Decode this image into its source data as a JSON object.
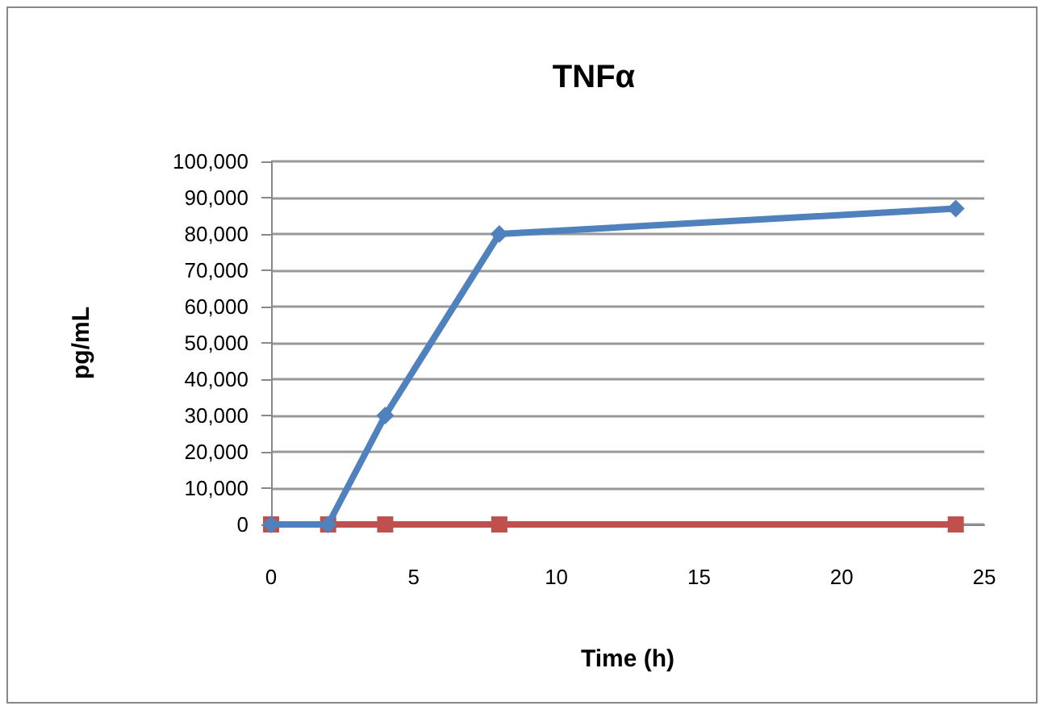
{
  "chart_data": {
    "type": "line",
    "title": "TNFα",
    "xlabel": "Time (h)",
    "ylabel": "pg/mL",
    "x": [
      0,
      2,
      4,
      8,
      24
    ],
    "series": [
      {
        "color": "#4f81bd",
        "values": [
          0,
          0,
          30000,
          80000,
          87000
        ],
        "marker": "diamond"
      },
      {
        "color": "#c0504d",
        "values": [
          0,
          0,
          0,
          0,
          0
        ],
        "marker": "square"
      }
    ],
    "xlim": [
      0,
      25
    ],
    "xticks": [
      0,
      5,
      10,
      15,
      20,
      25
    ],
    "ylim": [
      0,
      100000
    ],
    "yticks": [
      0,
      {
        "value": 10000,
        "label": "10,000"
      },
      {
        "value": 20000,
        "label": "20,000"
      },
      {
        "value": 30000,
        "label": "30,000"
      },
      {
        "value": 40000,
        "label": "40,000"
      },
      {
        "value": 50000,
        "label": "50,000"
      },
      {
        "value": 60000,
        "label": "60,000"
      },
      {
        "value": 70000,
        "label": "70,000"
      },
      {
        "value": 80000,
        "label": "80,000"
      },
      {
        "value": 90000,
        "label": "90,000"
      },
      {
        "value": 100000,
        "label": "100,000"
      }
    ],
    "grid": "y",
    "line_style": "solid"
  }
}
